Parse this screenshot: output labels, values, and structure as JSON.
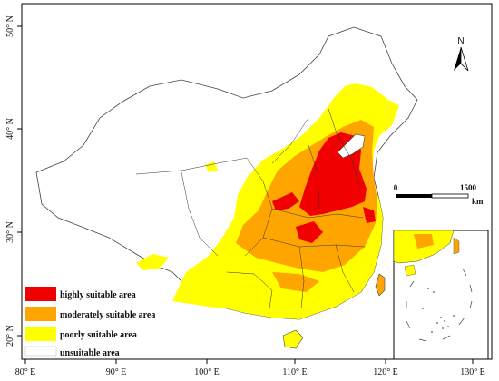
{
  "map": {
    "x_ticks": [
      "80° E",
      "90° E",
      "100° E",
      "110° E",
      "120° E",
      "130° E"
    ],
    "y_ticks": [
      "50° N",
      "40° N",
      "30° N",
      "20° N"
    ],
    "north_label": "N",
    "scale": {
      "start": "0",
      "end": "1500",
      "unit": "km"
    },
    "legend": [
      {
        "label": "highly suitable area",
        "color": "#f00000"
      },
      {
        "label": "moderately suitable area",
        "color": "#ffa500"
      },
      {
        "label": "poorly suitable area",
        "color": "#ffff00"
      },
      {
        "label": "unsuitable area",
        "color": "#ffffff"
      }
    ]
  }
}
